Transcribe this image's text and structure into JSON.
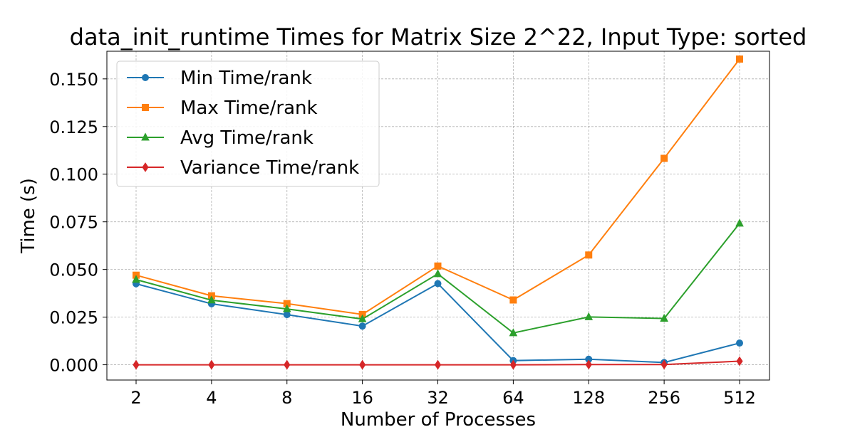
{
  "chart_data": {
    "type": "line",
    "title": "data_init_runtime Times for Matrix Size 2^22, Input Type: sorted",
    "xlabel": "Number of Processes",
    "ylabel": "Time (s)",
    "categories": [
      "2",
      "4",
      "8",
      "16",
      "32",
      "64",
      "128",
      "256",
      "512"
    ],
    "ylim": [
      -0.008,
      0.1645
    ],
    "yticks": [
      "0.000",
      "0.025",
      "0.050",
      "0.075",
      "0.100",
      "0.125",
      "0.150"
    ],
    "grid": true,
    "legend_position": "top-left",
    "series": [
      {
        "name": "Min Time/rank",
        "color": "#1f77b4",
        "marker": "circle",
        "values": [
          0.0425,
          0.032,
          0.0263,
          0.0203,
          0.0426,
          0.0022,
          0.0029,
          0.0012,
          0.0114
        ]
      },
      {
        "name": "Max Time/rank",
        "color": "#ff7f0e",
        "marker": "square",
        "values": [
          0.047,
          0.0362,
          0.0321,
          0.0264,
          0.0518,
          0.034,
          0.0576,
          0.1083,
          0.1604
        ]
      },
      {
        "name": "Avg Time/rank",
        "color": "#2ca02c",
        "marker": "triangle",
        "values": [
          0.0447,
          0.0339,
          0.0293,
          0.024,
          0.0477,
          0.0167,
          0.0251,
          0.0243,
          0.0742
        ]
      },
      {
        "name": "Variance Time/rank",
        "color": "#d62728",
        "marker": "diamond",
        "values": [
          0.0,
          0.0,
          0.0,
          0.0,
          0.0,
          0.0,
          0.0001,
          0.0001,
          0.0019
        ]
      }
    ]
  }
}
